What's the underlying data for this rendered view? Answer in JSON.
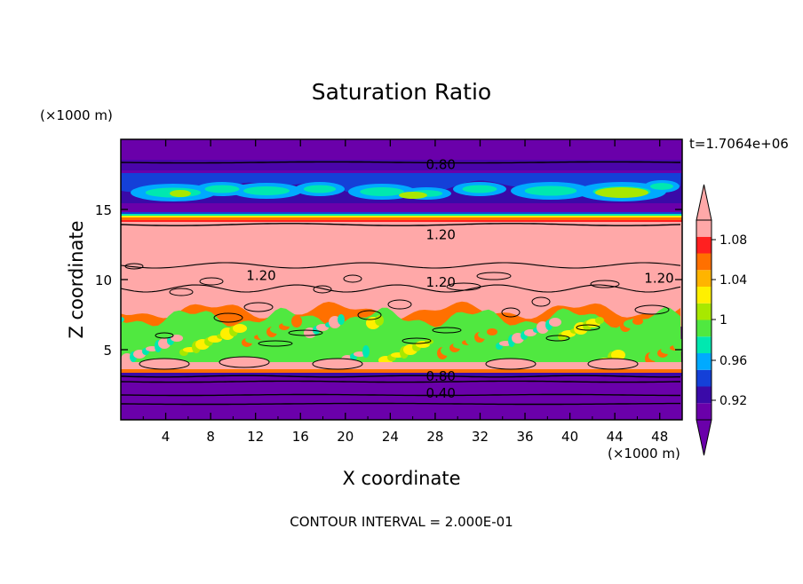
{
  "chart_data": {
    "type": "heatmap",
    "title": "Saturation Ratio",
    "xlabel": "X coordinate",
    "ylabel": "Z coordinate",
    "x_units": "(×1000 m)",
    "y_units": "(×1000 m)",
    "time_label": "t=1.7064e+06",
    "footer": "CONTOUR INTERVAL = 2.000E-01",
    "xlim": [
      0,
      50
    ],
    "ylim": [
      0,
      20
    ],
    "x_ticks": [
      "4",
      "8",
      "12",
      "16",
      "20",
      "24",
      "28",
      "32",
      "36",
      "40",
      "44",
      "48"
    ],
    "y_ticks": [
      "5",
      "10",
      "15"
    ],
    "colorbar": {
      "levels": [
        "1.08",
        "1.04",
        "1",
        "0.96",
        "0.92"
      ],
      "colors": [
        "#6a00aa",
        "#3a0aa8",
        "#1440d8",
        "#00aaff",
        "#00e8b0",
        "#50e840",
        "#a8e800",
        "#fff000",
        "#ffb400",
        "#ff7000",
        "#ff2020",
        "#ffa8a8"
      ]
    },
    "contour_labels": [
      {
        "text": "0.80",
        "x": 28.5,
        "z": 18.2
      },
      {
        "text": "1.20",
        "x": 28.5,
        "z": 13.2
      },
      {
        "text": "1.20",
        "x": 28.5,
        "z": 9.8
      },
      {
        "text": "1.20",
        "x": 12.5,
        "z": 10.3
      },
      {
        "text": "1.20",
        "x": 71.0,
        "z": 10.1
      },
      {
        "text": "0.80",
        "x": 28.5,
        "z": 3.1
      },
      {
        "text": "0.40",
        "x": 28.5,
        "z": 1.9
      }
    ]
  }
}
